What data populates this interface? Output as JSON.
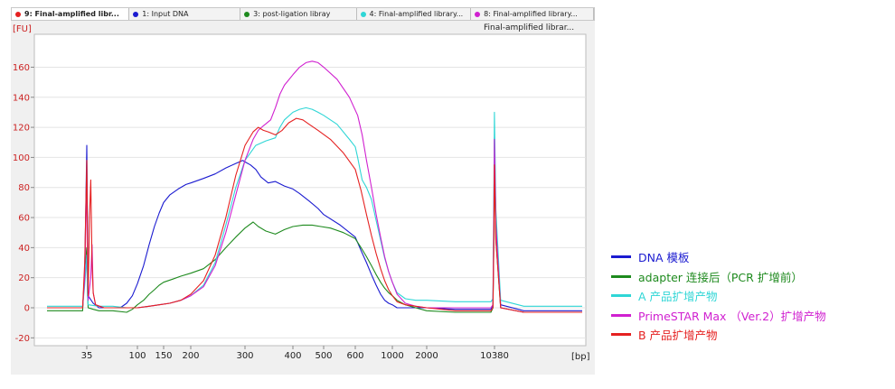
{
  "tabs": [
    {
      "label": "9: Final-amplified libr...",
      "color": "#e52121",
      "active": true
    },
    {
      "label": "1: Input DNA",
      "color": "#1b1bd0",
      "active": false
    },
    {
      "label": "3: post-ligation libray",
      "color": "#1e8a1e",
      "active": false
    },
    {
      "label": "4: Final-amplified library...",
      "color": "#2fd6d6",
      "active": false
    },
    {
      "label": "8: Final-amplified library...",
      "color": "#d020d0",
      "active": false
    }
  ],
  "chart_title": "Final-amplified librar...",
  "chart_data": {
    "type": "line",
    "ylabel": "[FU]",
    "xlabel": "[bp]",
    "ylim": [
      -25,
      172
    ],
    "yticks": [
      -20,
      0,
      20,
      40,
      60,
      80,
      100,
      120,
      140,
      160
    ],
    "xticks": [
      {
        "label": "35",
        "pos": 35
      },
      {
        "label": "100",
        "pos": 100
      },
      {
        "label": "150",
        "pos": 150
      },
      {
        "label": "200",
        "pos": 200
      },
      {
        "label": "300",
        "pos": 300
      },
      {
        "label": "400",
        "pos": 400
      },
      {
        "label": "500",
        "pos": 500
      },
      {
        "label": "600",
        "pos": 600
      },
      {
        "label": "1000",
        "pos": 1000
      },
      {
        "label": "2000",
        "pos": 2000
      },
      {
        "label": "10380",
        "pos": 10380
      }
    ],
    "series": [
      {
        "name": "DNA 模板",
        "color": "#1b1bd0",
        "points": [
          [
            20,
            0
          ],
          [
            33,
            0
          ],
          [
            34,
            22
          ],
          [
            35,
            108
          ],
          [
            35.5,
            55
          ],
          [
            36,
            8
          ],
          [
            40,
            3
          ],
          [
            45,
            0
          ],
          [
            50,
            0
          ],
          [
            60,
            0
          ],
          [
            70,
            0
          ],
          [
            80,
            3
          ],
          [
            90,
            8
          ],
          [
            100,
            16
          ],
          [
            110,
            28
          ],
          [
            120,
            42
          ],
          [
            130,
            54
          ],
          [
            140,
            63
          ],
          [
            150,
            70
          ],
          [
            160,
            75
          ],
          [
            175,
            79
          ],
          [
            190,
            82
          ],
          [
            200,
            83
          ],
          [
            220,
            86
          ],
          [
            240,
            89
          ],
          [
            260,
            93
          ],
          [
            280,
            96
          ],
          [
            295,
            98
          ],
          [
            300,
            97
          ],
          [
            310,
            95
          ],
          [
            320,
            92
          ],
          [
            330,
            87
          ],
          [
            345,
            83
          ],
          [
            360,
            84
          ],
          [
            380,
            81
          ],
          [
            400,
            79
          ],
          [
            420,
            76
          ],
          [
            450,
            71
          ],
          [
            480,
            66
          ],
          [
            500,
            62
          ],
          [
            550,
            55
          ],
          [
            600,
            47
          ],
          [
            650,
            38
          ],
          [
            700,
            30
          ],
          [
            750,
            22
          ],
          [
            800,
            15
          ],
          [
            850,
            9
          ],
          [
            900,
            5
          ],
          [
            950,
            3
          ],
          [
            1000,
            2
          ],
          [
            1100,
            0
          ],
          [
            1300,
            0
          ],
          [
            2000,
            0
          ],
          [
            4000,
            -1
          ],
          [
            9500,
            -1
          ],
          [
            10000,
            2
          ],
          [
            10200,
            55
          ],
          [
            10350,
            113
          ],
          [
            10450,
            55
          ],
          [
            10700,
            2
          ],
          [
            12000,
            -2
          ],
          [
            16000,
            -2
          ]
        ]
      },
      {
        "name": "adapter 连接后（PCR 扩增前）",
        "color": "#1e8a1e",
        "points": [
          [
            20,
            -2
          ],
          [
            33,
            -2
          ],
          [
            34,
            25
          ],
          [
            35,
            40
          ],
          [
            35.5,
            10
          ],
          [
            36,
            0
          ],
          [
            40,
            -1
          ],
          [
            45,
            -2
          ],
          [
            60,
            -2
          ],
          [
            80,
            -3
          ],
          [
            90,
            -1
          ],
          [
            100,
            2
          ],
          [
            110,
            5
          ],
          [
            120,
            9
          ],
          [
            130,
            12
          ],
          [
            140,
            15
          ],
          [
            150,
            17
          ],
          [
            165,
            19
          ],
          [
            180,
            21
          ],
          [
            200,
            23
          ],
          [
            220,
            26
          ],
          [
            240,
            32
          ],
          [
            260,
            40
          ],
          [
            280,
            47
          ],
          [
            300,
            53
          ],
          [
            315,
            57
          ],
          [
            325,
            54
          ],
          [
            340,
            51
          ],
          [
            360,
            49
          ],
          [
            380,
            52
          ],
          [
            400,
            54
          ],
          [
            430,
            55
          ],
          [
            460,
            55
          ],
          [
            490,
            54
          ],
          [
            520,
            53
          ],
          [
            560,
            50
          ],
          [
            600,
            46
          ],
          [
            650,
            40
          ],
          [
            700,
            34
          ],
          [
            750,
            28
          ],
          [
            800,
            22
          ],
          [
            850,
            17
          ],
          [
            900,
            13
          ],
          [
            950,
            10
          ],
          [
            1000,
            8
          ],
          [
            1100,
            5
          ],
          [
            1300,
            2
          ],
          [
            1600,
            0
          ],
          [
            2000,
            -2
          ],
          [
            4000,
            -3
          ],
          [
            9500,
            -3
          ],
          [
            10000,
            0
          ],
          [
            10200,
            45
          ],
          [
            10350,
            95
          ],
          [
            10450,
            45
          ],
          [
            10700,
            0
          ],
          [
            12000,
            -3
          ],
          [
            16000,
            -3
          ]
        ]
      },
      {
        "name": "A 产品扩增产物",
        "color": "#2fd6d6",
        "points": [
          [
            20,
            1
          ],
          [
            33,
            1
          ],
          [
            34,
            15
          ],
          [
            35,
            35
          ],
          [
            35.5,
            8
          ],
          [
            36,
            2
          ],
          [
            45,
            1
          ],
          [
            60,
            1
          ],
          [
            80,
            0
          ],
          [
            100,
            0
          ],
          [
            120,
            1
          ],
          [
            140,
            2
          ],
          [
            160,
            3
          ],
          [
            180,
            5
          ],
          [
            200,
            8
          ],
          [
            220,
            15
          ],
          [
            240,
            30
          ],
          [
            260,
            55
          ],
          [
            280,
            80
          ],
          [
            300,
            98
          ],
          [
            320,
            108
          ],
          [
            340,
            111
          ],
          [
            360,
            113
          ],
          [
            370,
            120
          ],
          [
            380,
            125
          ],
          [
            400,
            130
          ],
          [
            420,
            132
          ],
          [
            440,
            133
          ],
          [
            460,
            132
          ],
          [
            480,
            130
          ],
          [
            500,
            128
          ],
          [
            540,
            122
          ],
          [
            580,
            112
          ],
          [
            600,
            107
          ],
          [
            620,
            100
          ],
          [
            640,
            92
          ],
          [
            660,
            85
          ],
          [
            700,
            80
          ],
          [
            750,
            72
          ],
          [
            800,
            58
          ],
          [
            850,
            45
          ],
          [
            900,
            33
          ],
          [
            950,
            24
          ],
          [
            1000,
            17
          ],
          [
            1100,
            10
          ],
          [
            1300,
            6
          ],
          [
            1600,
            5
          ],
          [
            2000,
            5
          ],
          [
            4000,
            4
          ],
          [
            9500,
            4
          ],
          [
            10000,
            6
          ],
          [
            10200,
            70
          ],
          [
            10350,
            130
          ],
          [
            10450,
            65
          ],
          [
            10700,
            5
          ],
          [
            12000,
            1
          ],
          [
            16000,
            1
          ]
        ]
      },
      {
        "name": "PrimeSTAR Max （Ver.2）扩增产物",
        "color": "#d020d0",
        "points": [
          [
            20,
            0
          ],
          [
            33,
            0
          ],
          [
            34,
            20
          ],
          [
            35,
            85
          ],
          [
            35.5,
            30
          ],
          [
            36,
            5
          ],
          [
            38,
            20
          ],
          [
            39,
            42
          ],
          [
            40,
            10
          ],
          [
            42,
            2
          ],
          [
            50,
            0
          ],
          [
            60,
            0
          ],
          [
            80,
            0
          ],
          [
            100,
            0
          ],
          [
            120,
            1
          ],
          [
            140,
            2
          ],
          [
            160,
            3
          ],
          [
            180,
            5
          ],
          [
            200,
            8
          ],
          [
            220,
            14
          ],
          [
            240,
            28
          ],
          [
            260,
            50
          ],
          [
            280,
            75
          ],
          [
            300,
            98
          ],
          [
            315,
            112
          ],
          [
            325,
            118
          ],
          [
            335,
            121
          ],
          [
            350,
            125
          ],
          [
            360,
            133
          ],
          [
            370,
            142
          ],
          [
            380,
            148
          ],
          [
            400,
            155
          ],
          [
            420,
            160
          ],
          [
            440,
            163
          ],
          [
            460,
            164
          ],
          [
            480,
            163
          ],
          [
            500,
            160
          ],
          [
            540,
            152
          ],
          [
            580,
            140
          ],
          [
            620,
            128
          ],
          [
            660,
            115
          ],
          [
            700,
            98
          ],
          [
            750,
            80
          ],
          [
            800,
            62
          ],
          [
            850,
            47
          ],
          [
            900,
            34
          ],
          [
            950,
            24
          ],
          [
            1000,
            17
          ],
          [
            1100,
            9
          ],
          [
            1300,
            3
          ],
          [
            1600,
            1
          ],
          [
            2000,
            0
          ],
          [
            4000,
            0
          ],
          [
            9500,
            0
          ],
          [
            10000,
            2
          ],
          [
            10200,
            55
          ],
          [
            10350,
            112
          ],
          [
            10450,
            55
          ],
          [
            10700,
            0
          ],
          [
            12000,
            -3
          ],
          [
            16000,
            -3
          ]
        ]
      },
      {
        "name": "B 产品扩增产物",
        "color": "#e52121",
        "points": [
          [
            20,
            0
          ],
          [
            33,
            0
          ],
          [
            34,
            30
          ],
          [
            35,
            98
          ],
          [
            35.5,
            40
          ],
          [
            36,
            8
          ],
          [
            37,
            60
          ],
          [
            38,
            85
          ],
          [
            39,
            30
          ],
          [
            40,
            10
          ],
          [
            42,
            2
          ],
          [
            50,
            0
          ],
          [
            60,
            0
          ],
          [
            80,
            0
          ],
          [
            100,
            0
          ],
          [
            120,
            1
          ],
          [
            140,
            2
          ],
          [
            160,
            3
          ],
          [
            180,
            5
          ],
          [
            200,
            9
          ],
          [
            220,
            18
          ],
          [
            240,
            35
          ],
          [
            260,
            60
          ],
          [
            280,
            88
          ],
          [
            300,
            108
          ],
          [
            315,
            117
          ],
          [
            325,
            120
          ],
          [
            335,
            118
          ],
          [
            345,
            117
          ],
          [
            360,
            115
          ],
          [
            375,
            118
          ],
          [
            390,
            123
          ],
          [
            410,
            126
          ],
          [
            430,
            125
          ],
          [
            450,
            122
          ],
          [
            480,
            118
          ],
          [
            520,
            112
          ],
          [
            560,
            103
          ],
          [
            600,
            92
          ],
          [
            650,
            78
          ],
          [
            700,
            62
          ],
          [
            750,
            48
          ],
          [
            800,
            36
          ],
          [
            850,
            26
          ],
          [
            900,
            18
          ],
          [
            950,
            12
          ],
          [
            1000,
            8
          ],
          [
            1100,
            4
          ],
          [
            1300,
            2
          ],
          [
            1600,
            1
          ],
          [
            2000,
            0
          ],
          [
            4000,
            -2
          ],
          [
            9500,
            -2
          ],
          [
            10000,
            0
          ],
          [
            10200,
            40
          ],
          [
            10350,
            95
          ],
          [
            10450,
            45
          ],
          [
            10700,
            0
          ],
          [
            12000,
            -3
          ],
          [
            16000,
            -3
          ]
        ]
      }
    ]
  }
}
